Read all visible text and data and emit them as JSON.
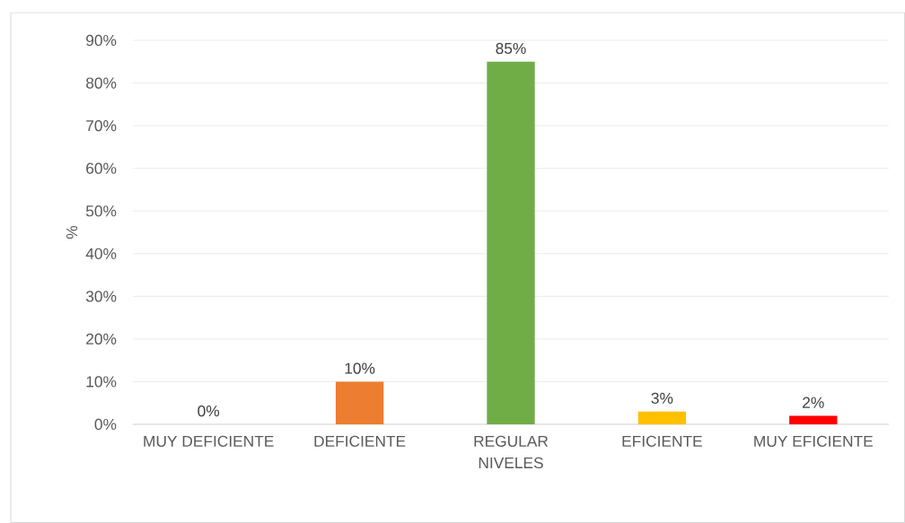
{
  "chart_data": {
    "type": "bar",
    "categories": [
      "MUY DEFICIENTE",
      "DEFICIENTE",
      "REGULAR",
      "EFICIENTE",
      "MUY EFICIENTE"
    ],
    "values": [
      0,
      10,
      85,
      3,
      2
    ],
    "colors": [
      "#4472c4",
      "#ed7d31",
      "#70ad47",
      "#ffc000",
      "#ff0000"
    ],
    "value_labels": [
      "0%",
      "10%",
      "85%",
      "3%",
      "2%"
    ],
    "xlabel": "NIVELES",
    "ylabel": "%",
    "ylim": [
      0,
      90
    ],
    "yticks": [
      {
        "value": 0,
        "label": "0%"
      },
      {
        "value": 10,
        "label": "10%"
      },
      {
        "value": 20,
        "label": "20%"
      },
      {
        "value": 30,
        "label": "30%"
      },
      {
        "value": 40,
        "label": "40%"
      },
      {
        "value": 50,
        "label": "50%"
      },
      {
        "value": 60,
        "label": "60%"
      },
      {
        "value": 70,
        "label": "70%"
      },
      {
        "value": 80,
        "label": "80%"
      },
      {
        "value": 90,
        "label": "90%"
      }
    ],
    "grid": "y"
  }
}
